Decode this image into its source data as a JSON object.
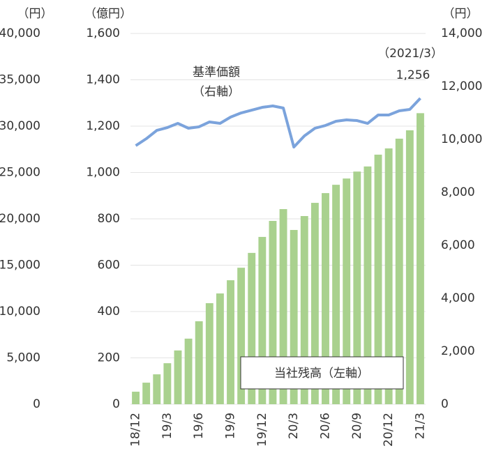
{
  "chart_data": {
    "type": "bar_line",
    "outer_axis_label": "（円）",
    "y_axis_label": "（億円）",
    "y2_axis_label": "（円）",
    "categories": [
      "18/12",
      null,
      null,
      "19/3",
      null,
      null,
      "19/6",
      null,
      null,
      "19/9",
      null,
      null,
      "19/12",
      null,
      null,
      "20/3",
      null,
      null,
      "20/6",
      null,
      null,
      "20/9",
      null,
      null,
      "20/12",
      null,
      null,
      "21/3"
    ],
    "series": [
      {
        "name": "当社残高（左軸）",
        "color": "#a9d18e",
        "kind": "bar",
        "values": [
          54,
          93,
          129,
          177,
          232,
          283,
          358,
          436,
          478,
          535,
          589,
          653,
          722,
          791,
          842,
          752,
          812,
          869,
          911,
          947,
          974,
          1004,
          1026,
          1077,
          1104,
          1146,
          1182,
          1256
        ]
      },
      {
        "name": "基準価額",
        "color": "#7ba3dc",
        "kind": "line",
        "axis": "y2",
        "values": [
          9763,
          10026,
          10342,
          10447,
          10605,
          10421,
          10474,
          10658,
          10605,
          10842,
          10999,
          11105,
          11210,
          11263,
          11184,
          9710,
          10132,
          10421,
          10526,
          10684,
          10737,
          10710,
          10605,
          10921,
          10921,
          11079,
          11131,
          11552
        ]
      }
    ],
    "line_label_sub": "（右軸）",
    "annotation_date": "（2021/3）",
    "annotation_value": "1,256",
    "ylim": [
      0,
      1600
    ],
    "yticks": [
      0,
      200,
      400,
      600,
      800,
      {
        "value": 1000,
        "label": "1,000"
      },
      {
        "value": 1200,
        "label": "1,200"
      },
      {
        "value": 1400,
        "label": "1,400"
      },
      {
        "value": 1600,
        "label": "1,600"
      }
    ],
    "outer_ylim": [
      0,
      40000
    ],
    "outer_yticks": [
      0,
      {
        "value": 5000,
        "label": "5,000"
      },
      {
        "value": 10000,
        "label": "10,000"
      },
      {
        "value": 15000,
        "label": "15,000"
      },
      {
        "value": 20000,
        "label": "20,000"
      },
      {
        "value": 25000,
        "label": "25,000"
      },
      {
        "value": 30000,
        "label": "30,000"
      },
      {
        "value": 35000,
        "label": "35,000"
      },
      {
        "value": 40000,
        "label": "40,000"
      }
    ],
    "y2lim": [
      0,
      14000
    ],
    "y2ticks": [
      0,
      {
        "value": 2000,
        "label": "2,000"
      },
      {
        "value": 4000,
        "label": "4,000"
      },
      {
        "value": 6000,
        "label": "6,000"
      },
      {
        "value": 8000,
        "label": "8,000"
      },
      {
        "value": 10000,
        "label": "10,000"
      },
      {
        "value": 12000,
        "label": "12,000"
      },
      {
        "value": 14000,
        "label": "14,000"
      }
    ],
    "grid": true
  }
}
